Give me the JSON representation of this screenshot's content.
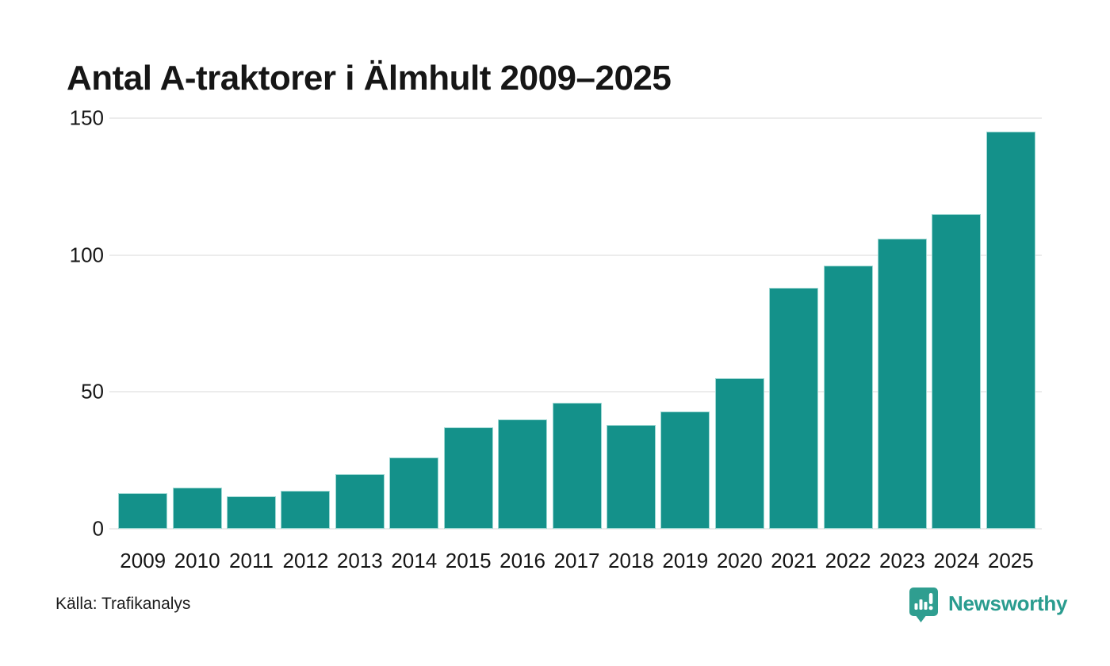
{
  "title": "Antal A-traktorer i Älmhult 2009–2025",
  "footer": {
    "source": "Källa: Trafikanalys",
    "logo_text": "Newsworthy"
  },
  "colors": {
    "bar_fill": "#14918a",
    "bar_stroke": "#9ed8d3",
    "gridline": "#ececec",
    "text": "#161616",
    "logo_teal": "#2f9e90"
  },
  "chart_data": {
    "type": "bar",
    "title": "Antal A-traktorer i Älmhult 2009–2025",
    "categories": [
      "2009",
      "2010",
      "2011",
      "2012",
      "2013",
      "2014",
      "2015",
      "2016",
      "2017",
      "2018",
      "2019",
      "2020",
      "2021",
      "2022",
      "2023",
      "2024",
      "2025"
    ],
    "values": [
      13,
      15,
      12,
      14,
      20,
      26,
      37,
      40,
      46,
      38,
      43,
      55,
      88,
      96,
      106,
      115,
      145
    ],
    "xlabel": "",
    "ylabel": "",
    "ylim": [
      0,
      150
    ],
    "yticks": [
      0,
      50,
      100,
      150
    ],
    "grid": "horizontal",
    "legend": "none",
    "bar_color": "#14918a",
    "source": "Källa: Trafikanalys"
  }
}
